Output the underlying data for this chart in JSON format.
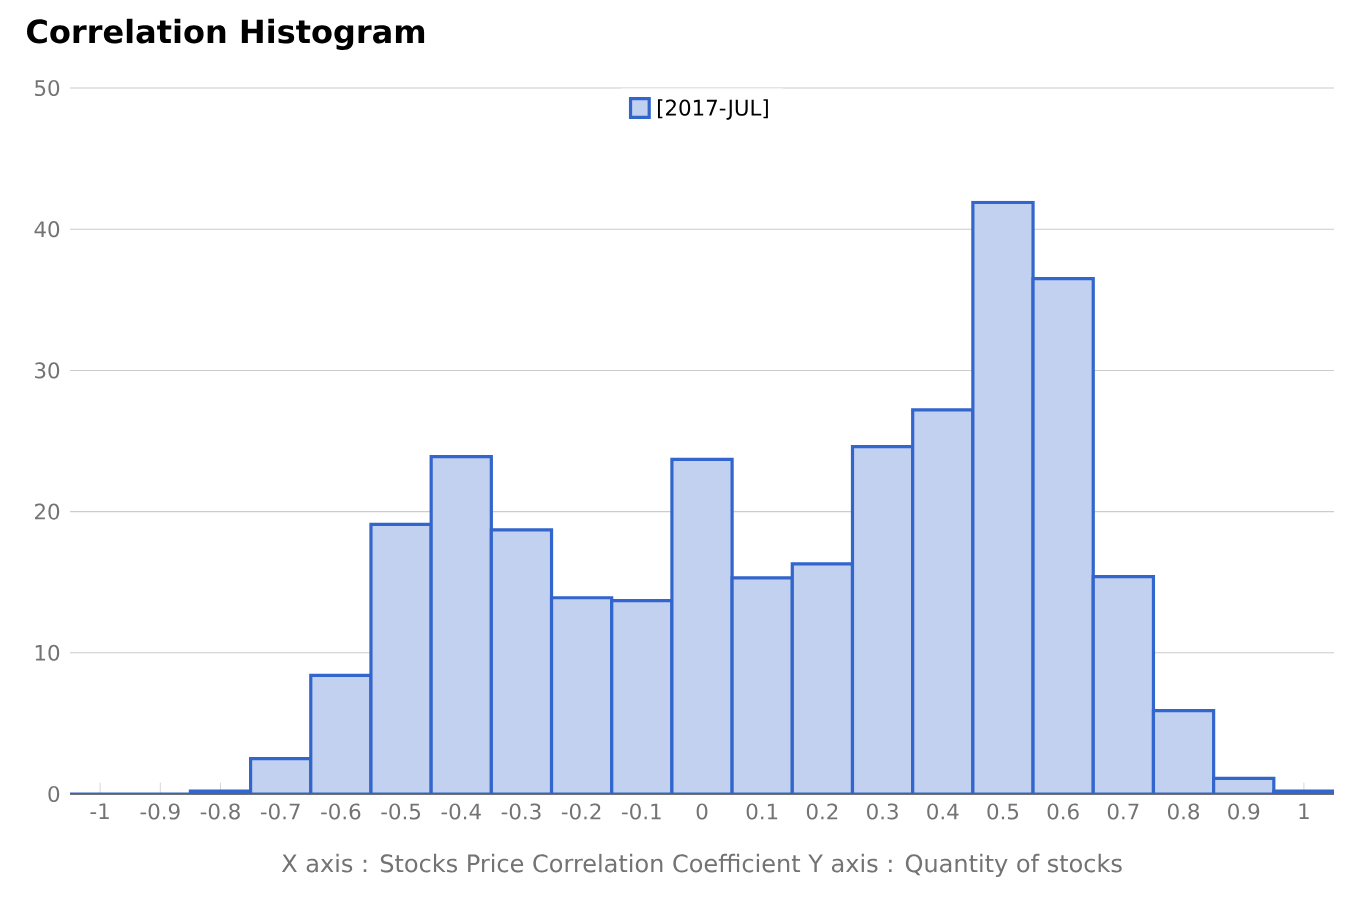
{
  "chart_data": {
    "type": "bar",
    "title": "Correlation Histogram",
    "xlabel": "X axis : Stocks Price Correlation Coefficient  Y axis : Quantity of stocks",
    "categories": [
      "-1",
      "-0.9",
      "-0.8",
      "-0.7",
      "-0.6",
      "-0.5",
      "-0.4",
      "-0.3",
      "-0.2",
      "-0.1",
      "0",
      "0.1",
      "0.2",
      "0.3",
      "0.4",
      "0.5",
      "0.6",
      "0.7",
      "0.8",
      "0.9",
      "1"
    ],
    "series": [
      {
        "name": "[2017-JUL]",
        "color": "#3366cc",
        "values": [
          0,
          0,
          0.2,
          2.5,
          8.4,
          19.1,
          23.9,
          18.7,
          13.9,
          13.7,
          23.7,
          15.3,
          16.3,
          24.6,
          27.2,
          41.9,
          36.5,
          15.4,
          5.9,
          1.1,
          0.2
        ]
      }
    ],
    "ylim": [
      0,
      50
    ],
    "yticks": [
      0,
      10,
      20,
      30,
      40,
      50
    ],
    "grid": "y",
    "legend": "top"
  }
}
